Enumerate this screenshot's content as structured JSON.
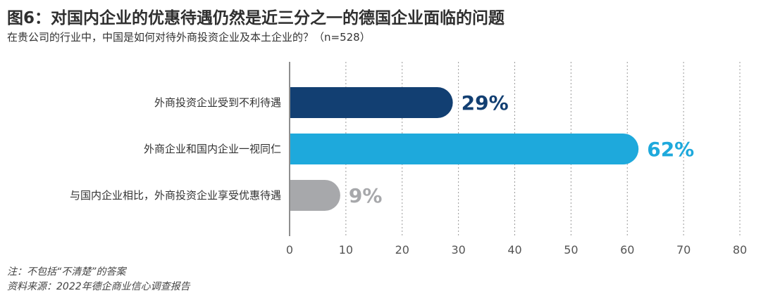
{
  "chart_data": {
    "type": "bar",
    "orientation": "horizontal",
    "title": "图6：对国内企业的优惠待遇仍然是近三分之一的德国企业面临的问题",
    "subtitle": "在贵公司的行业中，中国是如何对待外商投资企业及本土企业的？（n=528）",
    "categories": [
      "外商投资企业受到不利待遇",
      "外商企业和国内企业一视同仁",
      "与国内企业相比，外商投资企业享受优惠待遇"
    ],
    "values": [
      29,
      62,
      9
    ],
    "value_labels": [
      "29%",
      "62%",
      "9%"
    ],
    "colors": [
      "#123f72",
      "#1ea9dc",
      "#a7a8ab"
    ],
    "xlim": [
      0,
      80
    ],
    "xticks": [
      "0",
      "10",
      "20",
      "30",
      "40",
      "50",
      "60",
      "70",
      "80"
    ],
    "grid": true
  },
  "notes": {
    "note": "注：不包括“不清楚”的答案",
    "source": "资料来源：2022年德企商业信心调查报告"
  }
}
